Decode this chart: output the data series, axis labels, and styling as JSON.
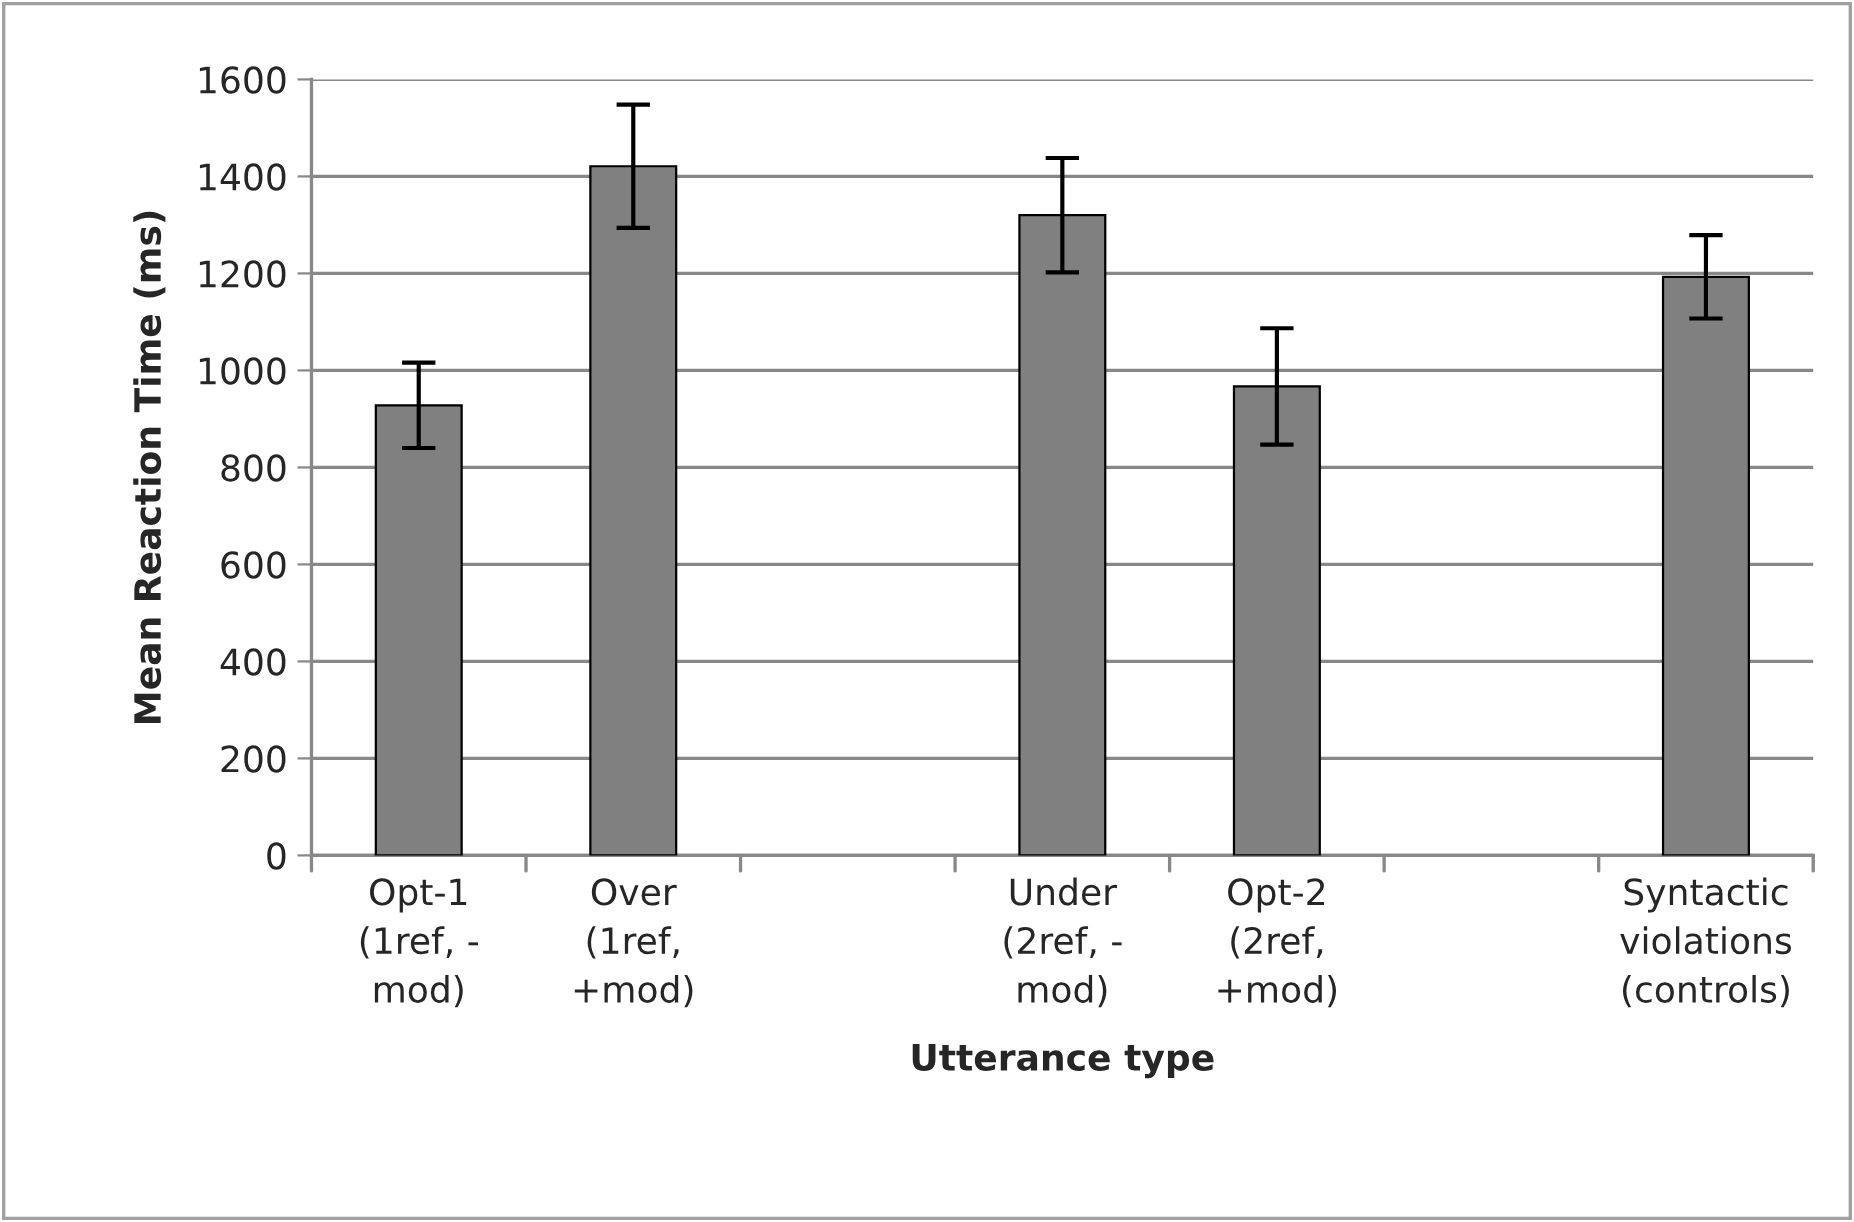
{
  "chart_data": {
    "type": "bar",
    "xlabel": "Utterance type",
    "ylabel": "Mean Reaction Time (ms)",
    "categories": [
      "Opt-1\n(1ref, -\nmod)",
      "Over\n(1ref,\n+mod)",
      null,
      "Under\n(2ref, -\nmod)",
      "Opt-2\n(2ref,\n+mod)",
      null,
      "Syntactic\nviolations\n(controls)"
    ],
    "values": [
      928,
      1421,
      null,
      1320,
      967,
      null,
      1193
    ],
    "errors": [
      88,
      127,
      null,
      118,
      120,
      null,
      86
    ],
    "color": "#808080",
    "ylim": [
      0,
      1600
    ],
    "yticks": [
      0,
      200,
      400,
      600,
      800,
      1000,
      1200,
      1400,
      1600
    ],
    "grid": "y",
    "legend": false
  }
}
